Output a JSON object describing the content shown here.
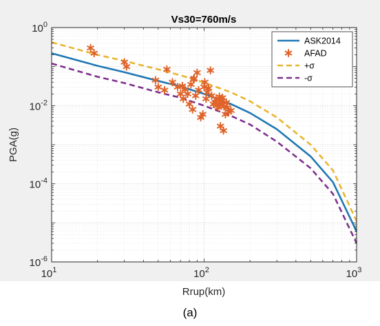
{
  "caption": "(a)",
  "chart_data": {
    "type": "scatter",
    "title": "Vs30=760m/s",
    "xlabel": "Rrup(km)",
    "ylabel": "PGA(g)",
    "x_scale": "log",
    "y_scale": "log",
    "xlim": [
      10,
      1000
    ],
    "ylim": [
      1e-06,
      1
    ],
    "x_ticks": [
      {
        "value": 10,
        "base": "10",
        "exp": "1"
      },
      {
        "value": 100,
        "base": "10",
        "exp": "2"
      },
      {
        "value": 1000,
        "base": "10",
        "exp": "3"
      }
    ],
    "y_ticks": [
      {
        "value": 1e-06,
        "base": "10",
        "exp": "-6"
      },
      {
        "value": 0.0001,
        "base": "10",
        "exp": "-4"
      },
      {
        "value": 0.01,
        "base": "10",
        "exp": "-2"
      },
      {
        "value": 1,
        "base": "10",
        "exp": "0"
      }
    ],
    "grid": true,
    "legend_position": "top-right",
    "colors": {
      "ask": "#1f77b4",
      "afad": "#e0642a",
      "plus": "#e8b530",
      "minus": "#7e2f8e"
    },
    "series": [
      {
        "name": "ASK2014",
        "kind": "line",
        "style": "solid",
        "color": "#1f77b4",
        "x": [
          10,
          20,
          30,
          50,
          70,
          100,
          150,
          200,
          300,
          500,
          700,
          1000
        ],
        "y": [
          0.22,
          0.105,
          0.072,
          0.043,
          0.031,
          0.02,
          0.011,
          0.0065,
          0.0025,
          0.0005,
          0.00011,
          6e-06
        ]
      },
      {
        "name": "AFAD",
        "kind": "scatter",
        "marker": "star",
        "color": "#e0642a",
        "x": [
          18,
          19,
          30,
          31,
          48,
          50,
          57,
          55,
          62,
          67,
          70,
          72,
          73,
          75,
          78,
          80,
          82,
          84,
          85,
          86,
          88,
          90,
          92,
          95,
          98,
          100,
          101,
          103,
          105,
          107,
          110,
          112,
          115,
          118,
          120,
          122,
          124,
          125,
          126,
          128,
          130,
          131,
          132,
          134,
          135,
          138,
          140,
          142,
          145,
          150
        ],
        "y": [
          0.3,
          0.22,
          0.13,
          0.1,
          0.045,
          0.03,
          0.085,
          0.025,
          0.04,
          0.03,
          0.02,
          0.032,
          0.015,
          0.026,
          0.02,
          0.011,
          0.035,
          0.008,
          0.047,
          0.05,
          0.018,
          0.07,
          0.025,
          0.005,
          0.006,
          0.03,
          0.04,
          0.015,
          0.022,
          0.028,
          0.08,
          0.018,
          0.011,
          0.012,
          0.015,
          0.01,
          0.009,
          0.014,
          0.017,
          0.003,
          0.013,
          0.011,
          0.016,
          0.0023,
          0.0095,
          0.006,
          0.012,
          0.009,
          0.007,
          0.0075
        ]
      },
      {
        "name": "+σ",
        "kind": "line",
        "style": "dashed",
        "color": "#e8b530",
        "x": [
          10,
          20,
          30,
          50,
          70,
          100,
          150,
          200,
          300,
          500,
          700,
          1000
        ],
        "y": [
          0.42,
          0.2,
          0.14,
          0.085,
          0.06,
          0.039,
          0.022,
          0.013,
          0.005,
          0.001,
          0.00022,
          1.1e-05
        ]
      },
      {
        "name": "-σ",
        "kind": "line",
        "style": "dashed",
        "color": "#7e2f8e",
        "x": [
          10,
          20,
          30,
          50,
          70,
          100,
          150,
          200,
          300,
          500,
          700,
          1000
        ],
        "y": [
          0.12,
          0.055,
          0.038,
          0.022,
          0.016,
          0.01,
          0.0055,
          0.0033,
          0.0012,
          0.00025,
          5.5e-05,
          3e-06
        ]
      }
    ]
  }
}
